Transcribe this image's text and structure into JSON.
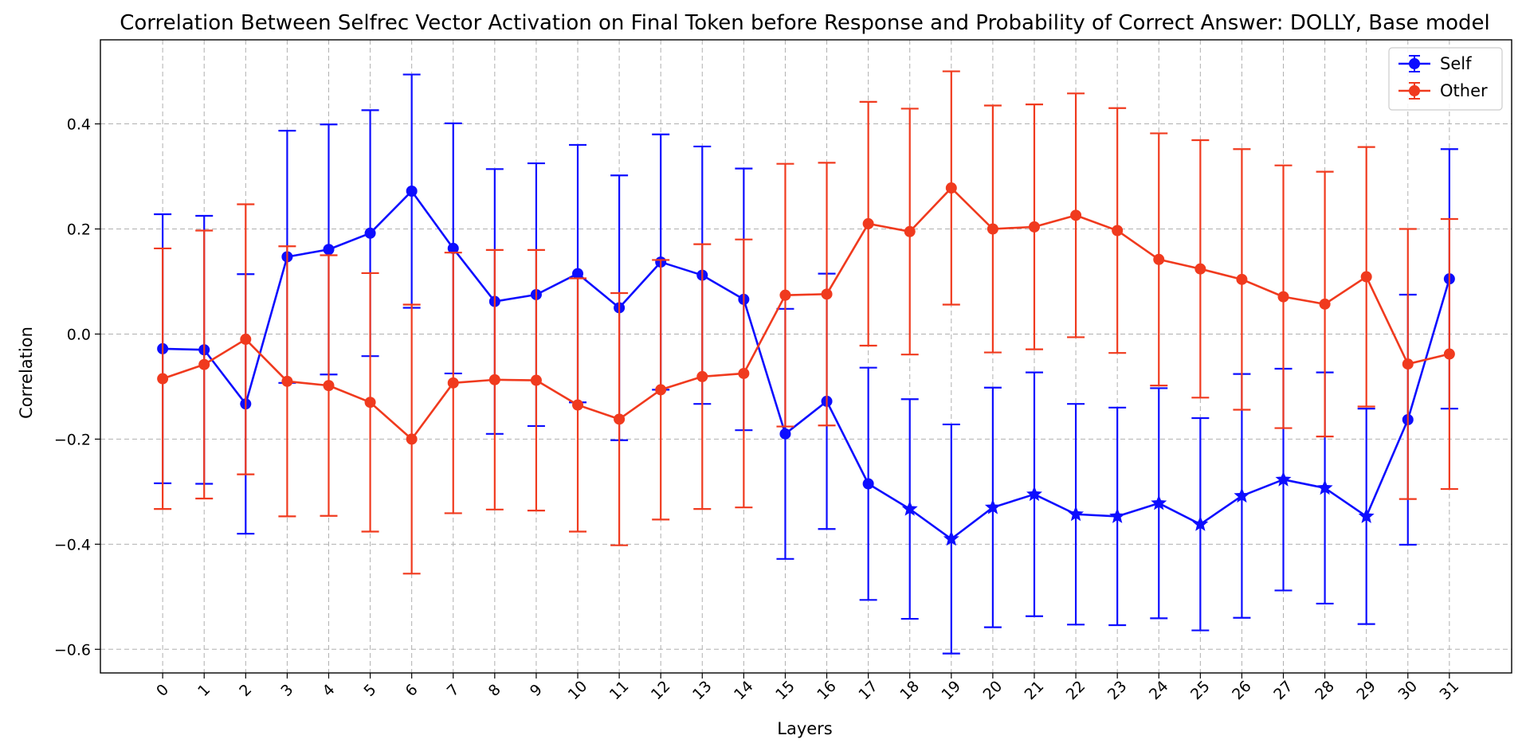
{
  "chart_data": {
    "type": "line",
    "title": "Correlation Between Selfrec Vector Activation on Final Token before Response and Probability of Correct Answer: DOLLY, Base model",
    "xlabel": "Layers",
    "ylabel": "Correlation",
    "x": [
      0,
      1,
      2,
      3,
      4,
      5,
      6,
      7,
      8,
      9,
      10,
      11,
      12,
      13,
      14,
      15,
      16,
      17,
      18,
      19,
      20,
      21,
      22,
      23,
      24,
      25,
      26,
      27,
      28,
      29,
      30,
      31
    ],
    "xlim": [
      -1.5,
      32.5
    ],
    "ylim": [
      -0.645,
      0.56
    ],
    "yticks": [
      -0.6,
      -0.4,
      -0.2,
      0.0,
      0.2,
      0.4
    ],
    "ytick_labels": [
      "−0.6",
      "−0.4",
      "−0.2",
      "0.0",
      "0.2",
      "0.4"
    ],
    "grid": true,
    "legend_position": "top-right",
    "series": [
      {
        "name": "Self",
        "color": "#0d0dff",
        "values": [
          -0.028,
          -0.03,
          -0.133,
          0.147,
          0.161,
          0.192,
          0.272,
          0.163,
          0.062,
          0.075,
          0.115,
          0.05,
          0.137,
          0.112,
          0.066,
          -0.19,
          -0.128,
          -0.285,
          -0.333,
          -0.39,
          -0.33,
          -0.305,
          -0.343,
          -0.347,
          -0.322,
          -0.362,
          -0.308,
          -0.277,
          -0.293,
          -0.347,
          -0.163,
          0.105
        ],
        "err": [
          0.256,
          0.255,
          0.247,
          0.24,
          0.238,
          0.234,
          0.222,
          0.238,
          0.252,
          0.25,
          0.245,
          0.252,
          0.243,
          0.245,
          0.249,
          0.238,
          0.243,
          0.221,
          0.209,
          0.218,
          0.228,
          0.232,
          0.21,
          0.207,
          0.219,
          0.202,
          0.232,
          0.211,
          0.22,
          0.205,
          0.238,
          0.247
        ],
        "markers": [
          "circle",
          "circle",
          "circle",
          "circle",
          "circle",
          "circle",
          "circle",
          "circle",
          "circle",
          "circle",
          "circle",
          "circle",
          "circle",
          "circle",
          "circle",
          "circle",
          "circle",
          "circle",
          "star",
          "star",
          "star",
          "star",
          "star",
          "star",
          "star",
          "star",
          "star",
          "star",
          "star",
          "star",
          "circle",
          "circle"
        ]
      },
      {
        "name": "Other",
        "color": "#f03a1e",
        "values": [
          -0.085,
          -0.058,
          -0.01,
          -0.09,
          -0.098,
          -0.13,
          -0.2,
          -0.093,
          -0.087,
          -0.088,
          -0.135,
          -0.162,
          -0.106,
          -0.081,
          -0.075,
          0.074,
          0.076,
          0.21,
          0.195,
          0.278,
          0.2,
          0.204,
          0.226,
          0.197,
          0.142,
          0.124,
          0.104,
          0.071,
          0.057,
          0.109,
          -0.057,
          -0.038
        ],
        "err": [
          0.248,
          0.255,
          0.257,
          0.257,
          0.248,
          0.246,
          0.256,
          0.248,
          0.247,
          0.248,
          0.241,
          0.24,
          0.247,
          0.252,
          0.255,
          0.25,
          0.25,
          0.232,
          0.234,
          0.222,
          0.235,
          0.233,
          0.232,
          0.233,
          0.24,
          0.245,
          0.248,
          0.25,
          0.252,
          0.247,
          0.257,
          0.257
        ],
        "markers": [
          "circle",
          "circle",
          "circle",
          "circle",
          "circle",
          "circle",
          "circle",
          "circle",
          "circle",
          "circle",
          "circle",
          "circle",
          "circle",
          "circle",
          "circle",
          "circle",
          "circle",
          "circle",
          "circle",
          "circle",
          "circle",
          "circle",
          "circle",
          "circle",
          "circle",
          "circle",
          "circle",
          "circle",
          "circle",
          "circle",
          "circle",
          "circle"
        ]
      }
    ]
  }
}
